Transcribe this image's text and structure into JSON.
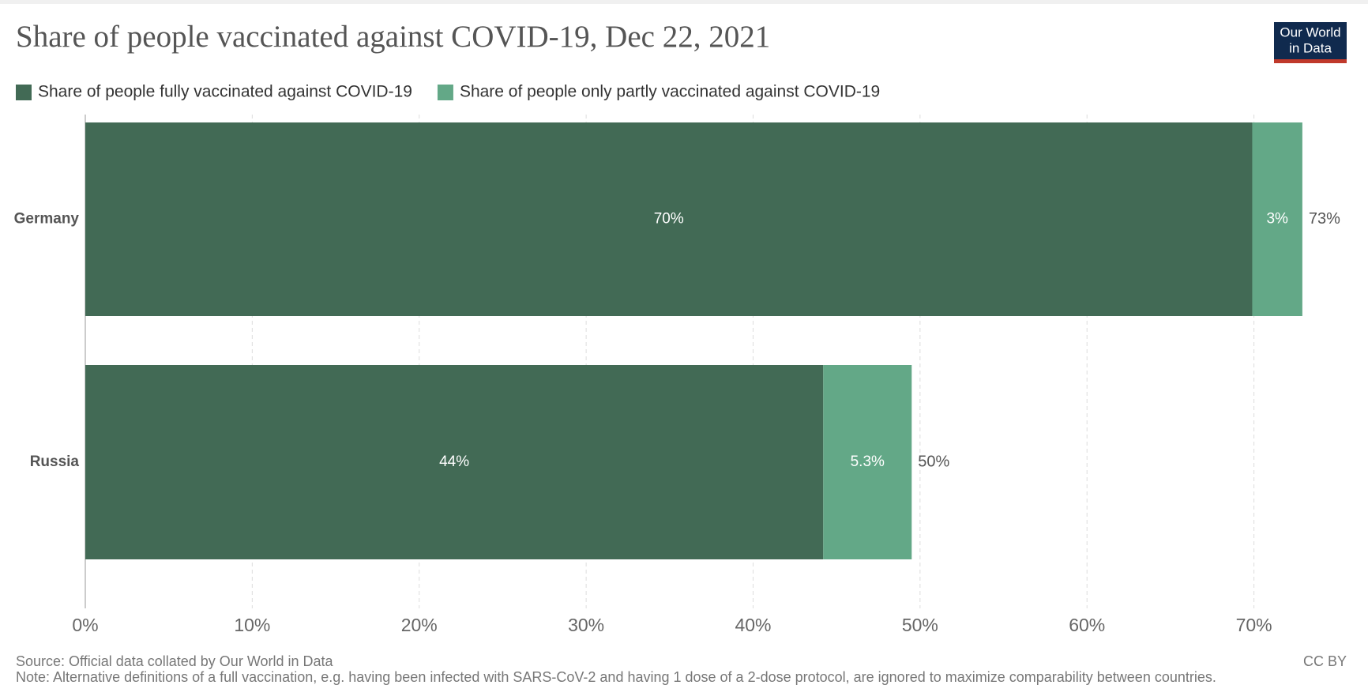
{
  "chart_data": {
    "type": "stacked-barh",
    "title": "Share of people vaccinated against COVID-19, Dec 22, 2021",
    "logo": [
      "Our World",
      "in Data"
    ],
    "categories": [
      "Germany",
      "Russia"
    ],
    "series": [
      {
        "name": "Share of people fully vaccinated against COVID-19",
        "color": "#426a55",
        "values": [
          69.9,
          44.2
        ],
        "value_labels": [
          "70%",
          "44%"
        ]
      },
      {
        "name": "Share of people only partly vaccinated against COVID-19",
        "color": "#63a887",
        "values": [
          3.0,
          5.3
        ],
        "value_labels": [
          "3%",
          "5.3%"
        ]
      }
    ],
    "totals": [
      72.9,
      49.5
    ],
    "total_labels": [
      "73%",
      "50%"
    ],
    "xlim": [
      0,
      73
    ],
    "xticks": [
      {
        "value": 0,
        "label": "0%"
      },
      {
        "value": 10,
        "label": "10%"
      },
      {
        "value": 20,
        "label": "20%"
      },
      {
        "value": 30,
        "label": "30%"
      },
      {
        "value": 40,
        "label": "40%"
      },
      {
        "value": 50,
        "label": "50%"
      },
      {
        "value": 60,
        "label": "60%"
      },
      {
        "value": 70,
        "label": "70%"
      }
    ],
    "grid": true,
    "legend": "top-left",
    "source": "Source: Official data collated by Our World in Data",
    "note": "Note: Alternative definitions of a full vaccination, e.g. having been infected with SARS-CoV-2 and having 1 dose of a 2-dose protocol, are ignored to maximize comparability between countries.",
    "license": "CC BY"
  }
}
